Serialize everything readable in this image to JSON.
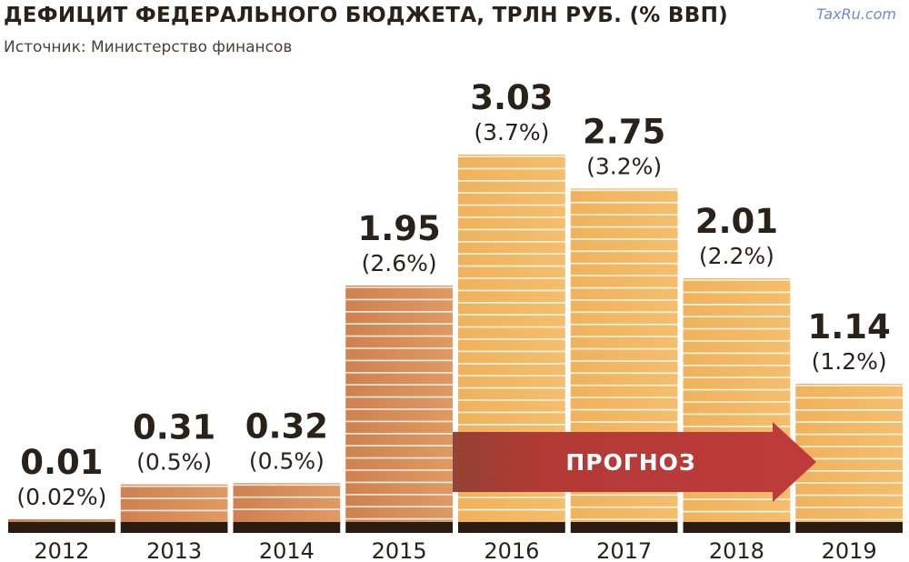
{
  "header": {
    "title": "ДЕФИЦИТ ФЕДЕРАЛЬНОГО БЮДЖЕТА, ТРЛН РУБ. (% ВВП)",
    "subtitle": "Источник: Министерство финансов",
    "watermark": "TaxRu.com"
  },
  "colors": {
    "actual": "#d48a55",
    "forecast": "#f1b45e",
    "baseline": "#2a1c10",
    "arrow": "#b83a3a",
    "text": "#2a2118"
  },
  "chart_data": {
    "type": "bar",
    "title": "ДЕФИЦИТ ФЕДЕРАЛЬНОГО БЮДЖЕТА, ТРЛН РУБ. (% ВВП)",
    "subtitle": "Источник: Министерство финансов",
    "categories": [
      "2012",
      "2013",
      "2014",
      "2015",
      "2016",
      "2017",
      "2018",
      "2019"
    ],
    "values": [
      0.01,
      0.31,
      0.32,
      1.95,
      3.03,
      2.75,
      2.01,
      1.14
    ],
    "value_labels": [
      "0.01",
      "0.31",
      "0.32",
      "1.95",
      "3.03",
      "2.75",
      "2.01",
      "1.14"
    ],
    "gdp_labels": [
      "(0.02%)",
      "(0.5%)",
      "(0.5%)",
      "(2.6%)",
      "(3.7%)",
      "(3.2%)",
      "(2.2%)",
      "(1.2%)"
    ],
    "forecast_from_index": 4,
    "forecast_label": "ПРОГНОЗ",
    "ylim": [
      0,
      3.03
    ],
    "grid": false,
    "legend": "none"
  }
}
